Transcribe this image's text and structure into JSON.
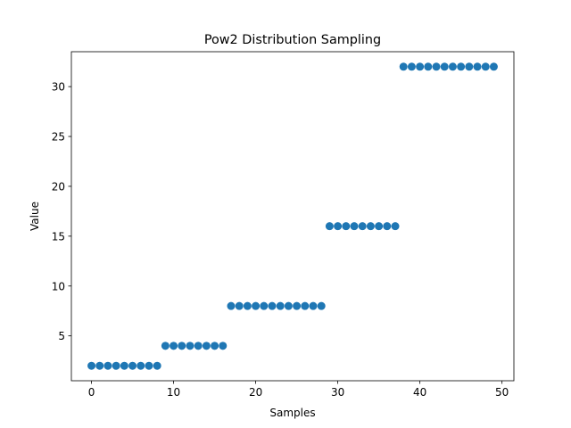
{
  "chart_data": {
    "type": "scatter",
    "title": "Pow2 Distribution Sampling",
    "xlabel": "Samples",
    "ylabel": "Value",
    "xlim": [
      -2.45,
      51.45
    ],
    "ylim": [
      0.5,
      33.5
    ],
    "x_ticks": [
      0,
      10,
      20,
      30,
      40,
      50
    ],
    "y_ticks": [
      5,
      10,
      15,
      20,
      25,
      30
    ],
    "grid": false,
    "marker_color": "#1f77b4",
    "series": [
      {
        "x": [
          0,
          1,
          2,
          3,
          4,
          5,
          6,
          7,
          8,
          9,
          10,
          11,
          12,
          13,
          14,
          15,
          16,
          17,
          18,
          19,
          20,
          21,
          22,
          23,
          24,
          25,
          26,
          27,
          28,
          29,
          30,
          31,
          32,
          33,
          34,
          35,
          36,
          37,
          38,
          39,
          40,
          41,
          42,
          43,
          44,
          45,
          46,
          47,
          48,
          49
        ],
        "y": [
          2,
          2,
          2,
          2,
          2,
          2,
          2,
          2,
          2,
          4,
          4,
          4,
          4,
          4,
          4,
          4,
          4,
          8,
          8,
          8,
          8,
          8,
          8,
          8,
          8,
          8,
          8,
          8,
          8,
          16,
          16,
          16,
          16,
          16,
          16,
          16,
          16,
          16,
          32,
          32,
          32,
          32,
          32,
          32,
          32,
          32,
          32,
          32,
          32,
          32
        ]
      }
    ]
  }
}
